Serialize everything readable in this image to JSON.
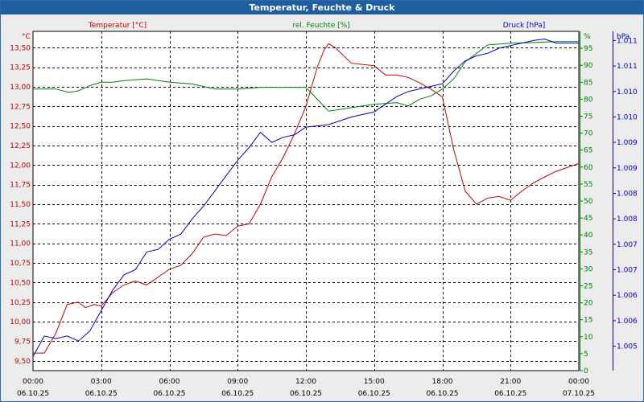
{
  "window": {
    "title": "Temperatur, Feuchte & Druck"
  },
  "colors": {
    "temp": "#c00000",
    "hum": "#008000",
    "press": "#0000c0",
    "grid": "#000000",
    "frame": "#1f5f9f"
  },
  "chart_data": {
    "type": "line",
    "title": "Temperatur, Feuchte & Druck",
    "x_ticks": [
      {
        "time": "00:00",
        "date": "06.10.25"
      },
      {
        "time": "03:00",
        "date": "06.10.25"
      },
      {
        "time": "06:00",
        "date": "06.10.25"
      },
      {
        "time": "09:00",
        "date": "06.10.25"
      },
      {
        "time": "12:00",
        "date": "06.10.25"
      },
      {
        "time": "15:00",
        "date": "06.10.25"
      },
      {
        "time": "18:00",
        "date": "06.10.25"
      },
      {
        "time": "21:00",
        "date": "06.10.25"
      },
      {
        "time": "00:00",
        "date": "07.10.25"
      }
    ],
    "xlim": [
      0,
      24
    ],
    "axes": {
      "temp": {
        "unit": "°C",
        "label": "Temperatur [°C]",
        "ylim": [
          9.375,
          13.708
        ],
        "ticks": [
          "13,50",
          "13,25",
          "13,00",
          "12,75",
          "12,50",
          "12,25",
          "12,00",
          "11,75",
          "11,50",
          "11,25",
          "11,00",
          "10,75",
          "10,50",
          "10,25",
          "10,00",
          "9,75",
          "9,50"
        ],
        "tick_values": [
          13.5,
          13.25,
          13.0,
          12.75,
          12.5,
          12.25,
          12.0,
          11.75,
          11.5,
          11.25,
          11.0,
          10.75,
          10.5,
          10.25,
          10.0,
          9.75,
          9.5
        ]
      },
      "hum": {
        "unit": "%",
        "label": "rel. Feuchte [%]",
        "ylim": [
          0,
          100
        ],
        "ticks": [
          "95",
          "90",
          "85",
          "80",
          "75",
          "70",
          "65",
          "60",
          "55",
          "50",
          "45",
          "40",
          "35",
          "30",
          "25",
          "20",
          "15",
          "10",
          "5",
          "0"
        ],
        "tick_values": [
          95,
          90,
          85,
          80,
          75,
          70,
          65,
          60,
          55,
          50,
          45,
          40,
          35,
          30,
          25,
          20,
          15,
          10,
          5,
          0
        ]
      },
      "press": {
        "unit": "hPa",
        "label": "Druck [hPa]",
        "ylim": [
          1004.52,
          1011.18
        ],
        "ticks": [
          "1.011",
          "1.011",
          "1.010",
          "1.010",
          "1.009",
          "1.009",
          "1.008",
          "1.008",
          "1.007",
          "1.007",
          "1.006",
          "1.006",
          "1.005"
        ],
        "tick_values": [
          1011.0,
          1010.5,
          1010.0,
          1009.5,
          1009.0,
          1008.5,
          1008.0,
          1007.5,
          1007.0,
          1006.5,
          1006.0,
          1005.5,
          1005.0
        ]
      }
    },
    "series": [
      {
        "name": "Temperatur [°C]",
        "axis": "temp",
        "points": [
          [
            0,
            9.6
          ],
          [
            0.5,
            9.6
          ],
          [
            1,
            9.85
          ],
          [
            1.5,
            10.22
          ],
          [
            2,
            10.25
          ],
          [
            2.3,
            10.18
          ],
          [
            2.7,
            10.22
          ],
          [
            3,
            10.2
          ],
          [
            3.5,
            10.37
          ],
          [
            4,
            10.47
          ],
          [
            4.5,
            10.52
          ],
          [
            5,
            10.47
          ],
          [
            5.5,
            10.57
          ],
          [
            6,
            10.67
          ],
          [
            6.5,
            10.72
          ],
          [
            7,
            10.87
          ],
          [
            7.5,
            11.08
          ],
          [
            8,
            11.12
          ],
          [
            8.5,
            11.1
          ],
          [
            9,
            11.22
          ],
          [
            9.5,
            11.25
          ],
          [
            10,
            11.5
          ],
          [
            10.5,
            11.85
          ],
          [
            11,
            12.1
          ],
          [
            11.5,
            12.4
          ],
          [
            12,
            12.75
          ],
          [
            12.5,
            13.25
          ],
          [
            12.8,
            13.47
          ],
          [
            13,
            13.55
          ],
          [
            13.3,
            13.5
          ],
          [
            14,
            13.3
          ],
          [
            15,
            13.27
          ],
          [
            15.5,
            13.15
          ],
          [
            16,
            13.15
          ],
          [
            16.5,
            13.12
          ],
          [
            17,
            13.05
          ],
          [
            17.5,
            12.97
          ],
          [
            18,
            12.87
          ],
          [
            18.5,
            12.2
          ],
          [
            19,
            11.67
          ],
          [
            19.5,
            11.5
          ],
          [
            20,
            11.58
          ],
          [
            20.5,
            11.6
          ],
          [
            21,
            11.55
          ],
          [
            21.5,
            11.67
          ],
          [
            22,
            11.77
          ],
          [
            22.5,
            11.85
          ],
          [
            23,
            11.92
          ],
          [
            24,
            12.02
          ]
        ]
      },
      {
        "name": "rel. Feuchte [%]",
        "axis": "hum",
        "points": [
          [
            0,
            83
          ],
          [
            1,
            83
          ],
          [
            1.6,
            82
          ],
          [
            2,
            82.5
          ],
          [
            2.5,
            84
          ],
          [
            3,
            85
          ],
          [
            3.5,
            85
          ],
          [
            4,
            85.5
          ],
          [
            5,
            86
          ],
          [
            6,
            85
          ],
          [
            7,
            84.5
          ],
          [
            8,
            83
          ],
          [
            9,
            83
          ],
          [
            10,
            83.5
          ],
          [
            11,
            83.5
          ],
          [
            12,
            83.5
          ],
          [
            12.5,
            80
          ],
          [
            13,
            76.5
          ],
          [
            13.5,
            77
          ],
          [
            14,
            77.5
          ],
          [
            15,
            78.5
          ],
          [
            16,
            79
          ],
          [
            16.5,
            78
          ],
          [
            17,
            80
          ],
          [
            17.5,
            81
          ],
          [
            18,
            83
          ],
          [
            18.5,
            86
          ],
          [
            19,
            91
          ],
          [
            20,
            96
          ],
          [
            21,
            96.5
          ],
          [
            22,
            96.7
          ],
          [
            23,
            97
          ],
          [
            24,
            97
          ]
        ]
      },
      {
        "name": "Druck [hPa]",
        "axis": "press",
        "points": [
          [
            0,
            1004.8
          ],
          [
            0.5,
            1005.2
          ],
          [
            1,
            1005.15
          ],
          [
            1.5,
            1005.2
          ],
          [
            2,
            1005.1
          ],
          [
            2.5,
            1005.3
          ],
          [
            3,
            1005.7
          ],
          [
            3.5,
            1006.1
          ],
          [
            4,
            1006.4
          ],
          [
            4.5,
            1006.5
          ],
          [
            5,
            1006.85
          ],
          [
            5.5,
            1006.9
          ],
          [
            6,
            1007.1
          ],
          [
            6.5,
            1007.2
          ],
          [
            7,
            1007.5
          ],
          [
            7.5,
            1007.75
          ],
          [
            8,
            1008.05
          ],
          [
            8.5,
            1008.35
          ],
          [
            9,
            1008.65
          ],
          [
            9.5,
            1008.9
          ],
          [
            10,
            1009.2
          ],
          [
            10.5,
            1009.0
          ],
          [
            11,
            1009.1
          ],
          [
            11.5,
            1009.15
          ],
          [
            12,
            1009.3
          ],
          [
            13,
            1009.35
          ],
          [
            14,
            1009.5
          ],
          [
            15,
            1009.6
          ],
          [
            15.5,
            1009.75
          ],
          [
            16,
            1009.9
          ],
          [
            16.5,
            1010.0
          ],
          [
            17,
            1010.05
          ],
          [
            17.5,
            1010.1
          ],
          [
            18,
            1010.15
          ],
          [
            18.5,
            1010.4
          ],
          [
            19,
            1010.6
          ],
          [
            19.5,
            1010.7
          ],
          [
            20,
            1010.75
          ],
          [
            20.5,
            1010.85
          ],
          [
            21,
            1010.9
          ],
          [
            21.5,
            1010.95
          ],
          [
            22,
            1011.0
          ],
          [
            22.5,
            1011.03
          ],
          [
            23,
            1010.95
          ],
          [
            23.5,
            1010.95
          ],
          [
            24,
            1010.95
          ]
        ]
      }
    ]
  }
}
